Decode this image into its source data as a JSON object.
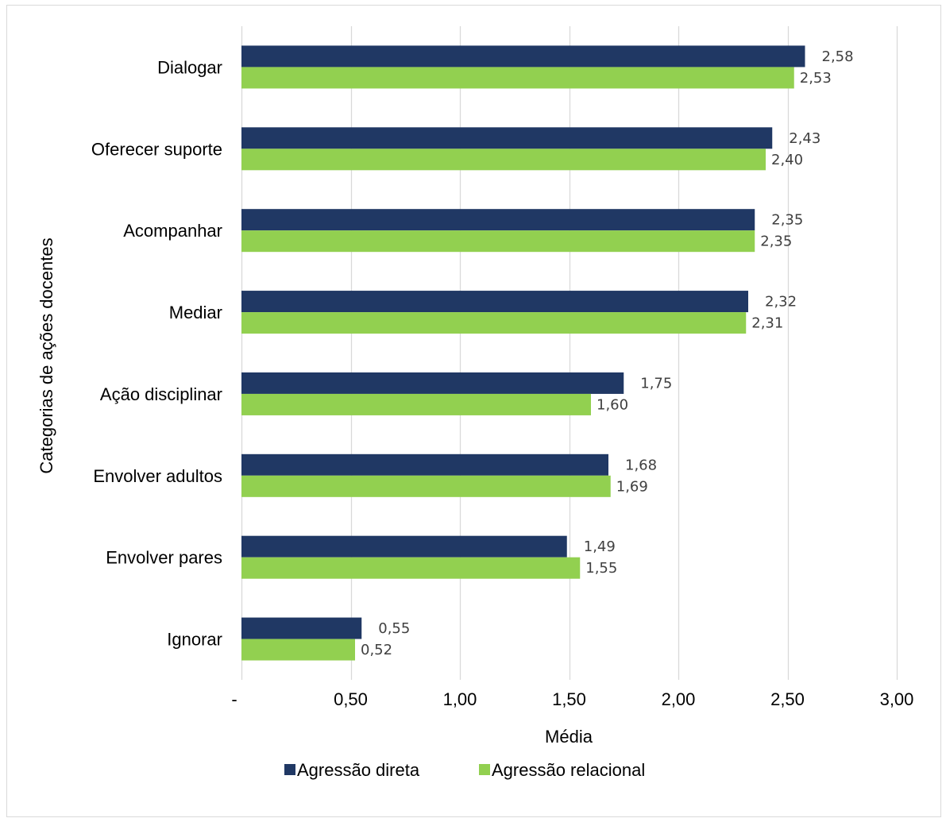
{
  "chart_data": {
    "type": "bar",
    "orientation": "horizontal",
    "categories": [
      "Dialogar",
      "Oferecer suporte",
      "Acompanhar",
      "Mediar",
      "Ação disciplinar",
      "Envolver adultos",
      "Envolver pares",
      "Ignorar"
    ],
    "series": [
      {
        "name": "Agressão direta",
        "color": "#203864",
        "values": [
          2.58,
          2.43,
          2.35,
          2.32,
          1.75,
          1.68,
          1.49,
          0.55
        ],
        "labels": [
          "2,58",
          "2,43",
          "2,35",
          "2,32",
          "1,75",
          "1,68",
          "1,49",
          "0,55"
        ]
      },
      {
        "name": "Agressão relacional",
        "color": "#92d050",
        "values": [
          2.53,
          2.4,
          2.35,
          2.31,
          1.6,
          1.69,
          1.55,
          0.52
        ],
        "labels": [
          "2,53",
          "2,40",
          "2,35",
          "2,31",
          "1,60",
          "1,69",
          "1,55",
          "0,52"
        ]
      }
    ],
    "xlabel": "Média",
    "ylabel": "Categorias de ações docentes",
    "xlim": [
      0,
      3
    ],
    "xticks": [
      0,
      0.5,
      1,
      1.5,
      2,
      2.5,
      3
    ],
    "xtick_labels": [
      "-",
      "0,50",
      "1,00",
      "1,50",
      "2,00",
      "2,50",
      "3,00"
    ],
    "grid": "vertical",
    "legend_position": "bottom"
  }
}
